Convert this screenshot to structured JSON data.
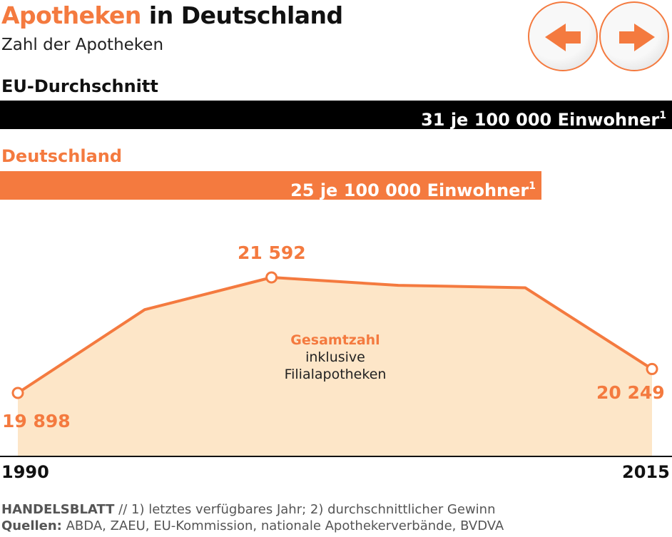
{
  "header": {
    "title_accent": "Apotheken",
    "title_rest": " in Deutschland",
    "subtitle": "Zahl der Apotheken"
  },
  "nav": {
    "prev_icon": "arrow-left-icon",
    "next_icon": "arrow-right-icon"
  },
  "eu": {
    "label": "EU-Durchschnitt",
    "bar_text": "31 je 100 000 Einwohner",
    "sup": "1",
    "value": 31
  },
  "de": {
    "label": "Deutschland",
    "bar_text": "25 je 100 000 Einwohner",
    "sup": "1",
    "value": 25
  },
  "colors": {
    "accent": "#f47a3f",
    "area": "#fde6c8",
    "eu_bar": "#000000"
  },
  "chart_data": {
    "type": "area",
    "x": [
      1990,
      1995,
      2000,
      2005,
      2010,
      2015
    ],
    "values": [
      19898,
      21119,
      21592,
      21476,
      21441,
      20249
    ],
    "labels": {
      "start": "19 898",
      "peak": "21 592",
      "end": "20 249"
    },
    "x_tick_labels": [
      "1990",
      "2015"
    ],
    "annotation": {
      "title": "Gesamtzahl",
      "line1": "inklusive",
      "line2": "Filialapotheken"
    },
    "ylim": [
      17600,
      21900
    ]
  },
  "footer": {
    "brand": "HANDELSBLATT",
    "notes": " // 1) letztes verfügbares Jahr; 2) durchschnittlicher Gewinn",
    "sources_label": "Quellen:",
    "sources": " ABDA, ZAEU, EU-Kommission, nationale Apothekerverbände, BVDVA"
  }
}
